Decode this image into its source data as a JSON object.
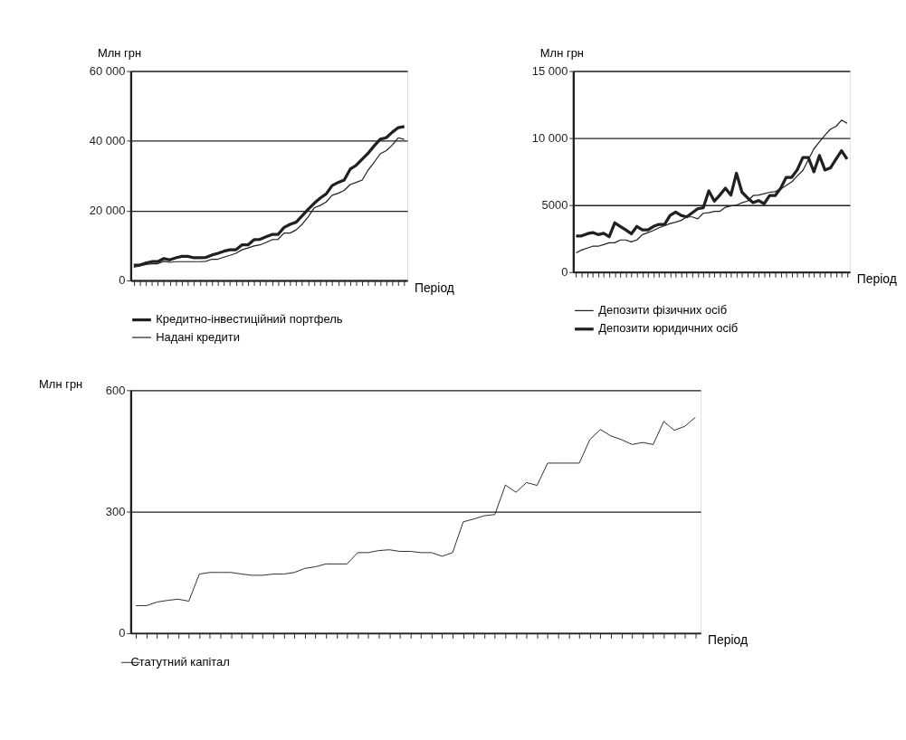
{
  "chart_data": [
    {
      "type": "line",
      "ylabel": "Млн грн",
      "xlabel": "Період",
      "categories": [
        null,
        null,
        null,
        null,
        null,
        null,
        null,
        null,
        null,
        null,
        null,
        null,
        null,
        null,
        null,
        null,
        null,
        null,
        null,
        null,
        null,
        null,
        null,
        null,
        null,
        null,
        null,
        null,
        null,
        null,
        null,
        null,
        null,
        null,
        null,
        null,
        null,
        null,
        null,
        null,
        null,
        null,
        null,
        null,
        null,
        null
      ],
      "ylim": [
        0,
        60000
      ],
      "yticks": [
        {
          "value": 0,
          "label": "0"
        },
        {
          "value": 20000,
          "label": "20 000"
        },
        {
          "value": 40000,
          "label": "40 000"
        },
        {
          "value": 60000,
          "label": "60 000"
        }
      ],
      "grid": "y",
      "legend": "bottom",
      "series": [
        {
          "name": "Кредитно-інвестиційний портфель",
          "color": "#231f20",
          "values": [
            4400,
            4400,
            5000,
            5400,
            5400,
            6300,
            5900,
            6500,
            6900,
            6900,
            6500,
            6500,
            6600,
            7300,
            7800,
            8400,
            8800,
            8800,
            10200,
            10200,
            11700,
            11800,
            12500,
            13200,
            13200,
            15200,
            16100,
            16700,
            18500,
            20400,
            22100,
            23600,
            24800,
            27200,
            28100,
            28800,
            31900,
            33000,
            34800,
            36500,
            38600,
            40500,
            40900,
            42500,
            43800,
            44100
          ]
        },
        {
          "name": "Надані кредити",
          "color": "#231f20",
          "values": [
            3800,
            4200,
            4600,
            4800,
            4800,
            5500,
            5200,
            5400,
            5400,
            5400,
            5400,
            5400,
            5500,
            6100,
            6100,
            6700,
            7200,
            7800,
            8800,
            9300,
            9900,
            10200,
            10900,
            11700,
            11800,
            13600,
            13600,
            14500,
            16100,
            18200,
            20800,
            21500,
            22500,
            24400,
            25000,
            25800,
            27500,
            28100,
            28800,
            31700,
            33900,
            36300,
            37200,
            38800,
            40900,
            40400
          ]
        }
      ]
    },
    {
      "type": "line",
      "ylabel": "Млн грн",
      "xlabel": "Період",
      "categories": [
        null,
        null,
        null,
        null,
        null,
        null,
        null,
        null,
        null,
        null,
        null,
        null,
        null,
        null,
        null,
        null,
        null,
        null,
        null,
        null,
        null,
        null,
        null,
        null,
        null,
        null,
        null,
        null,
        null,
        null,
        null,
        null,
        null,
        null,
        null,
        null,
        null,
        null,
        null,
        null,
        null,
        null,
        null,
        null,
        null,
        null,
        null,
        null,
        null,
        null
      ],
      "ylim": [
        0,
        15000
      ],
      "yticks": [
        0,
        5000,
        {
          "value": 10000,
          "label": "10 000"
        },
        {
          "value": 15000,
          "label": "15 000"
        }
      ],
      "grid": "y",
      "legend": "bottom",
      "series": [
        {
          "name": "Депозити фізичних осіб",
          "color": "#231f20",
          "values": [
            1440,
            1650,
            1790,
            1930,
            1930,
            2050,
            2190,
            2190,
            2400,
            2400,
            2260,
            2400,
            2800,
            2950,
            3110,
            3310,
            3460,
            3620,
            3720,
            3860,
            4120,
            4120,
            3980,
            4390,
            4430,
            4530,
            4530,
            4840,
            4940,
            5000,
            5180,
            5300,
            5710,
            5750,
            5850,
            5960,
            6000,
            6200,
            6460,
            6730,
            7180,
            7580,
            8390,
            9200,
            9710,
            10220,
            10670,
            10870,
            11340,
            11100
          ]
        },
        {
          "name": "Депозити юридичних осіб",
          "color": "#231f20",
          "values": [
            2700,
            2700,
            2860,
            2950,
            2800,
            2900,
            2640,
            3680,
            3410,
            3150,
            2860,
            3410,
            3150,
            3150,
            3410,
            3560,
            3560,
            4230,
            4490,
            4230,
            4120,
            4430,
            4730,
            4800,
            6060,
            5300,
            5750,
            6260,
            5750,
            7380,
            5960,
            5540,
            5180,
            5340,
            5100,
            5710,
            5710,
            6260,
            7070,
            7070,
            7640,
            8550,
            8550,
            7480,
            8700,
            7620,
            7780,
            8430,
            9060,
            8430
          ]
        }
      ]
    },
    {
      "type": "line",
      "ylabel": "Млн грн",
      "xlabel": "Період",
      "categories": [
        null,
        null,
        null,
        null,
        null,
        null,
        null,
        null,
        null,
        null,
        null,
        null,
        null,
        null,
        null,
        null,
        null,
        null,
        null,
        null,
        null,
        null,
        null,
        null,
        null,
        null,
        null,
        null,
        null,
        null,
        null,
        null,
        null,
        null,
        null,
        null,
        null,
        null,
        null,
        null,
        null,
        null,
        null,
        null,
        null,
        null,
        null,
        null,
        null,
        null,
        null,
        null,
        null,
        null
      ],
      "ylim": [
        0,
        600
      ],
      "yticks": [
        0,
        300,
        600
      ],
      "grid": "y",
      "legend": "bottom",
      "series": [
        {
          "name": "Статутний капітал",
          "color": "#231f20",
          "values": [
            68,
            68,
            77,
            81,
            84,
            79,
            146,
            150,
            150,
            150,
            146,
            143,
            143,
            146,
            146,
            150,
            160,
            164,
            171,
            171,
            171,
            199,
            199,
            204,
            206,
            202,
            202,
            199,
            199,
            190,
            199,
            275,
            282,
            290,
            293,
            366,
            348,
            372,
            365,
            420,
            420,
            420,
            420,
            478,
            503,
            487,
            478,
            466,
            471,
            466,
            523,
            501,
            511,
            533
          ]
        }
      ]
    }
  ]
}
